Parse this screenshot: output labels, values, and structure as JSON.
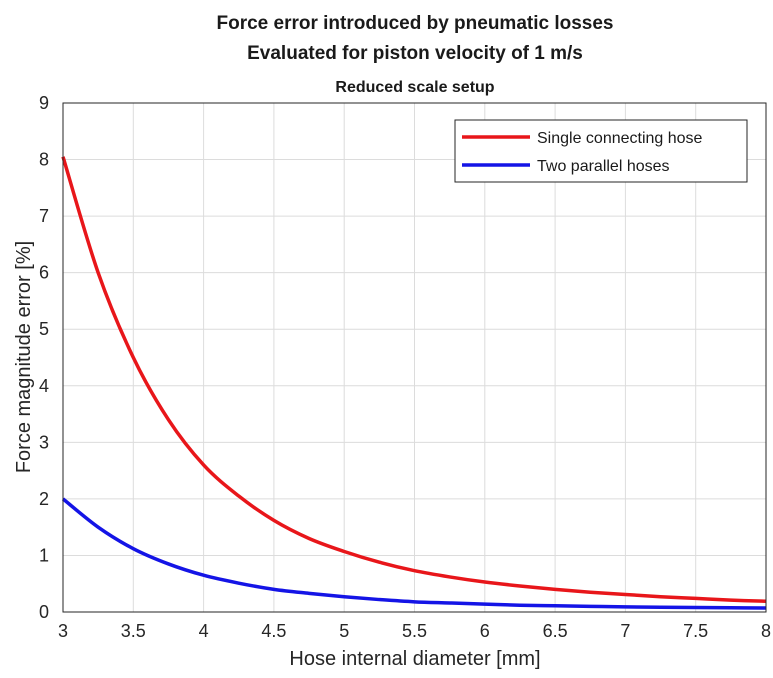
{
  "chart_data": {
    "type": "line",
    "title": "Force error introduced by pneumatic losses",
    "subtitle": "Evaluated for piston velocity of 1 m/s",
    "subtitle2": "Reduced scale setup",
    "xlabel": "Hose internal diameter [mm]",
    "ylabel": "Force magnitude error [%]",
    "xlim": [
      3,
      8
    ],
    "ylim": [
      0,
      9
    ],
    "xticks": [
      "3",
      "3.5",
      "4",
      "4.5",
      "5",
      "5.5",
      "6",
      "6.5",
      "7",
      "7.5",
      "8"
    ],
    "yticks": [
      "0",
      "1",
      "2",
      "3",
      "4",
      "5",
      "6",
      "7",
      "8",
      "9"
    ],
    "grid": true,
    "legend_position": "top-right",
    "x": [
      3,
      3.25,
      3.5,
      3.75,
      4,
      4.25,
      4.5,
      4.75,
      5,
      5.25,
      5.5,
      5.75,
      6,
      6.25,
      6.5,
      6.75,
      7,
      7.25,
      7.5,
      7.75,
      8
    ],
    "series": [
      {
        "name": "Single connecting hose",
        "color": "#e8161a",
        "values": [
          8.05,
          6.0,
          4.5,
          3.4,
          2.6,
          2.05,
          1.62,
          1.3,
          1.07,
          0.88,
          0.73,
          0.62,
          0.53,
          0.46,
          0.4,
          0.35,
          0.31,
          0.27,
          0.24,
          0.21,
          0.19
        ]
      },
      {
        "name": "Two parallel hoses",
        "color": "#1414e6",
        "values": [
          2.0,
          1.5,
          1.12,
          0.85,
          0.65,
          0.51,
          0.4,
          0.33,
          0.27,
          0.22,
          0.18,
          0.16,
          0.14,
          0.12,
          0.11,
          0.1,
          0.09,
          0.085,
          0.08,
          0.075,
          0.07
        ]
      }
    ]
  }
}
